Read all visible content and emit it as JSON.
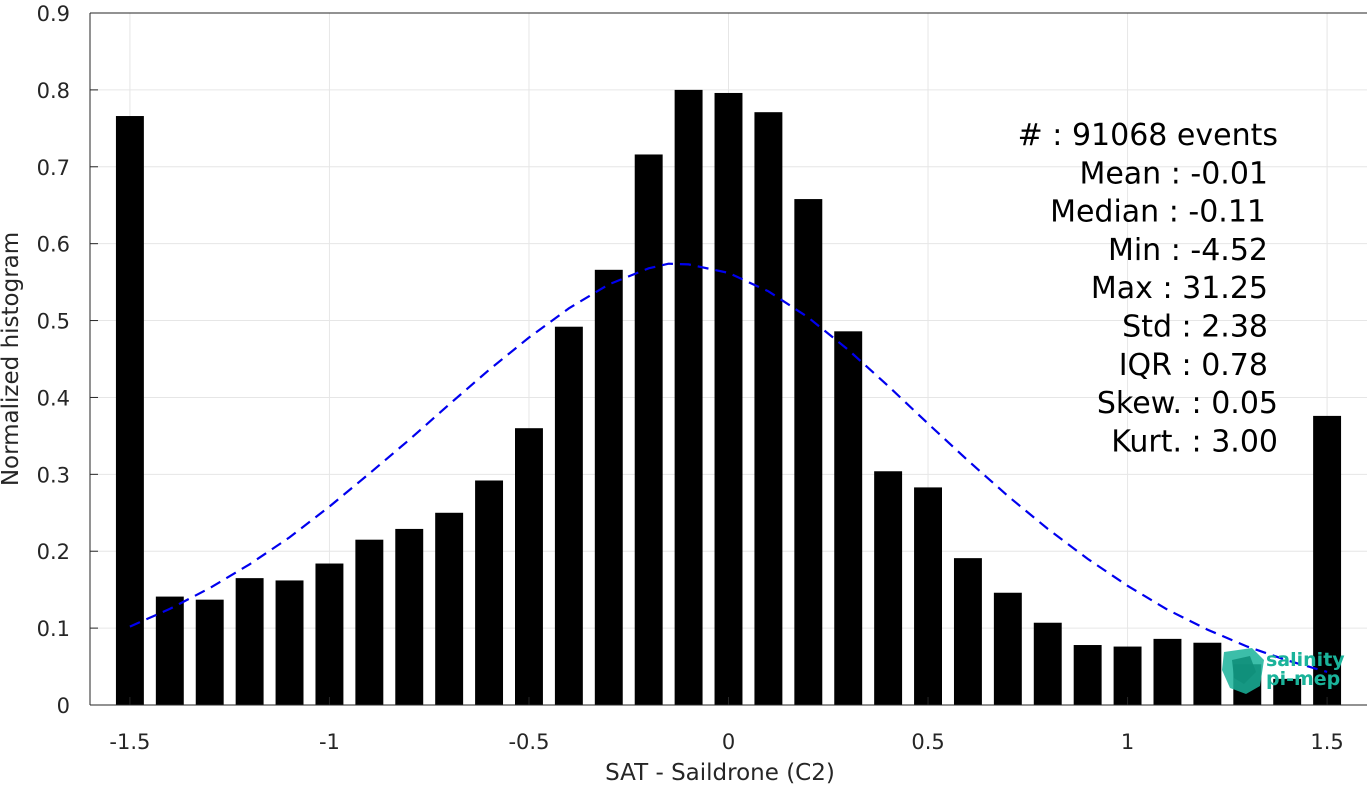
{
  "chart_data": {
    "type": "bar",
    "xlabel": "SAT - Saildrone (C2)",
    "ylabel": "Normalized histogram",
    "xlim": [
      -1.6,
      1.6
    ],
    "ylim": [
      0,
      0.9
    ],
    "grid": true,
    "xticks": [
      -1.5,
      -1,
      -0.5,
      0,
      0.5,
      1,
      1.5
    ],
    "xtick_labels": [
      "-1.5",
      "-1",
      "-0.5",
      "0",
      "0.5",
      "1",
      "1.5"
    ],
    "yticks": [
      0,
      0.1,
      0.2,
      0.3,
      0.4,
      0.5,
      0.6,
      0.7,
      0.8,
      0.9
    ],
    "ytick_labels": [
      "0",
      "0.1",
      "0.2",
      "0.3",
      "0.4",
      "0.5",
      "0.6",
      "0.7",
      "0.8",
      "0.9"
    ],
    "bar_color": "#000000",
    "series": [
      {
        "type": "bar",
        "x": [
          -1.5,
          -1.4,
          -1.3,
          -1.2,
          -1.1,
          -1.0,
          -0.9,
          -0.8,
          -0.7,
          -0.6,
          -0.5,
          -0.4,
          -0.3,
          -0.2,
          -0.1,
          0.0,
          0.1,
          0.2,
          0.3,
          0.4,
          0.5,
          0.6,
          0.7,
          0.8,
          0.9,
          1.0,
          1.1,
          1.2,
          1.3,
          1.4,
          1.5
        ],
        "values": [
          0.766,
          0.141,
          0.137,
          0.165,
          0.162,
          0.184,
          0.215,
          0.229,
          0.25,
          0.292,
          0.36,
          0.492,
          0.566,
          0.716,
          0.8,
          0.796,
          0.771,
          0.658,
          0.486,
          0.304,
          0.283,
          0.191,
          0.146,
          0.107,
          0.078,
          0.076,
          0.086,
          0.081,
          0.053,
          0.034,
          0.376
        ]
      },
      {
        "type": "line",
        "style": "dashed",
        "color": "#0000ee",
        "x": [
          -1.5,
          -1.4,
          -1.3,
          -1.2,
          -1.1,
          -1.0,
          -0.9,
          -0.8,
          -0.7,
          -0.6,
          -0.5,
          -0.4,
          -0.3,
          -0.2,
          -0.15,
          -0.1,
          0.0,
          0.1,
          0.2,
          0.3,
          0.4,
          0.5,
          0.6,
          0.7,
          0.8,
          0.9,
          1.0,
          1.1,
          1.2,
          1.3,
          1.4,
          1.5
        ],
        "values": [
          0.102,
          0.125,
          0.152,
          0.183,
          0.218,
          0.258,
          0.301,
          0.345,
          0.391,
          0.436,
          0.478,
          0.516,
          0.547,
          0.568,
          0.574,
          0.573,
          0.562,
          0.538,
          0.504,
          0.462,
          0.415,
          0.366,
          0.318,
          0.272,
          0.229,
          0.19,
          0.155,
          0.124,
          0.098,
          0.076,
          0.058,
          0.043
        ]
      }
    ],
    "annotations": [
      "#  : 91068 events",
      "Mean : -0.01",
      "Median : -0.11",
      "Min : -4.52",
      "Max : 31.25",
      "Std : 2.38",
      "IQR : 0.78",
      "Skew. : 0.05",
      "Kurt. : 3.00"
    ]
  },
  "logo": {
    "text_line1": "salinity",
    "text_line2": "pi-mep",
    "color": "#1ab39a"
  }
}
